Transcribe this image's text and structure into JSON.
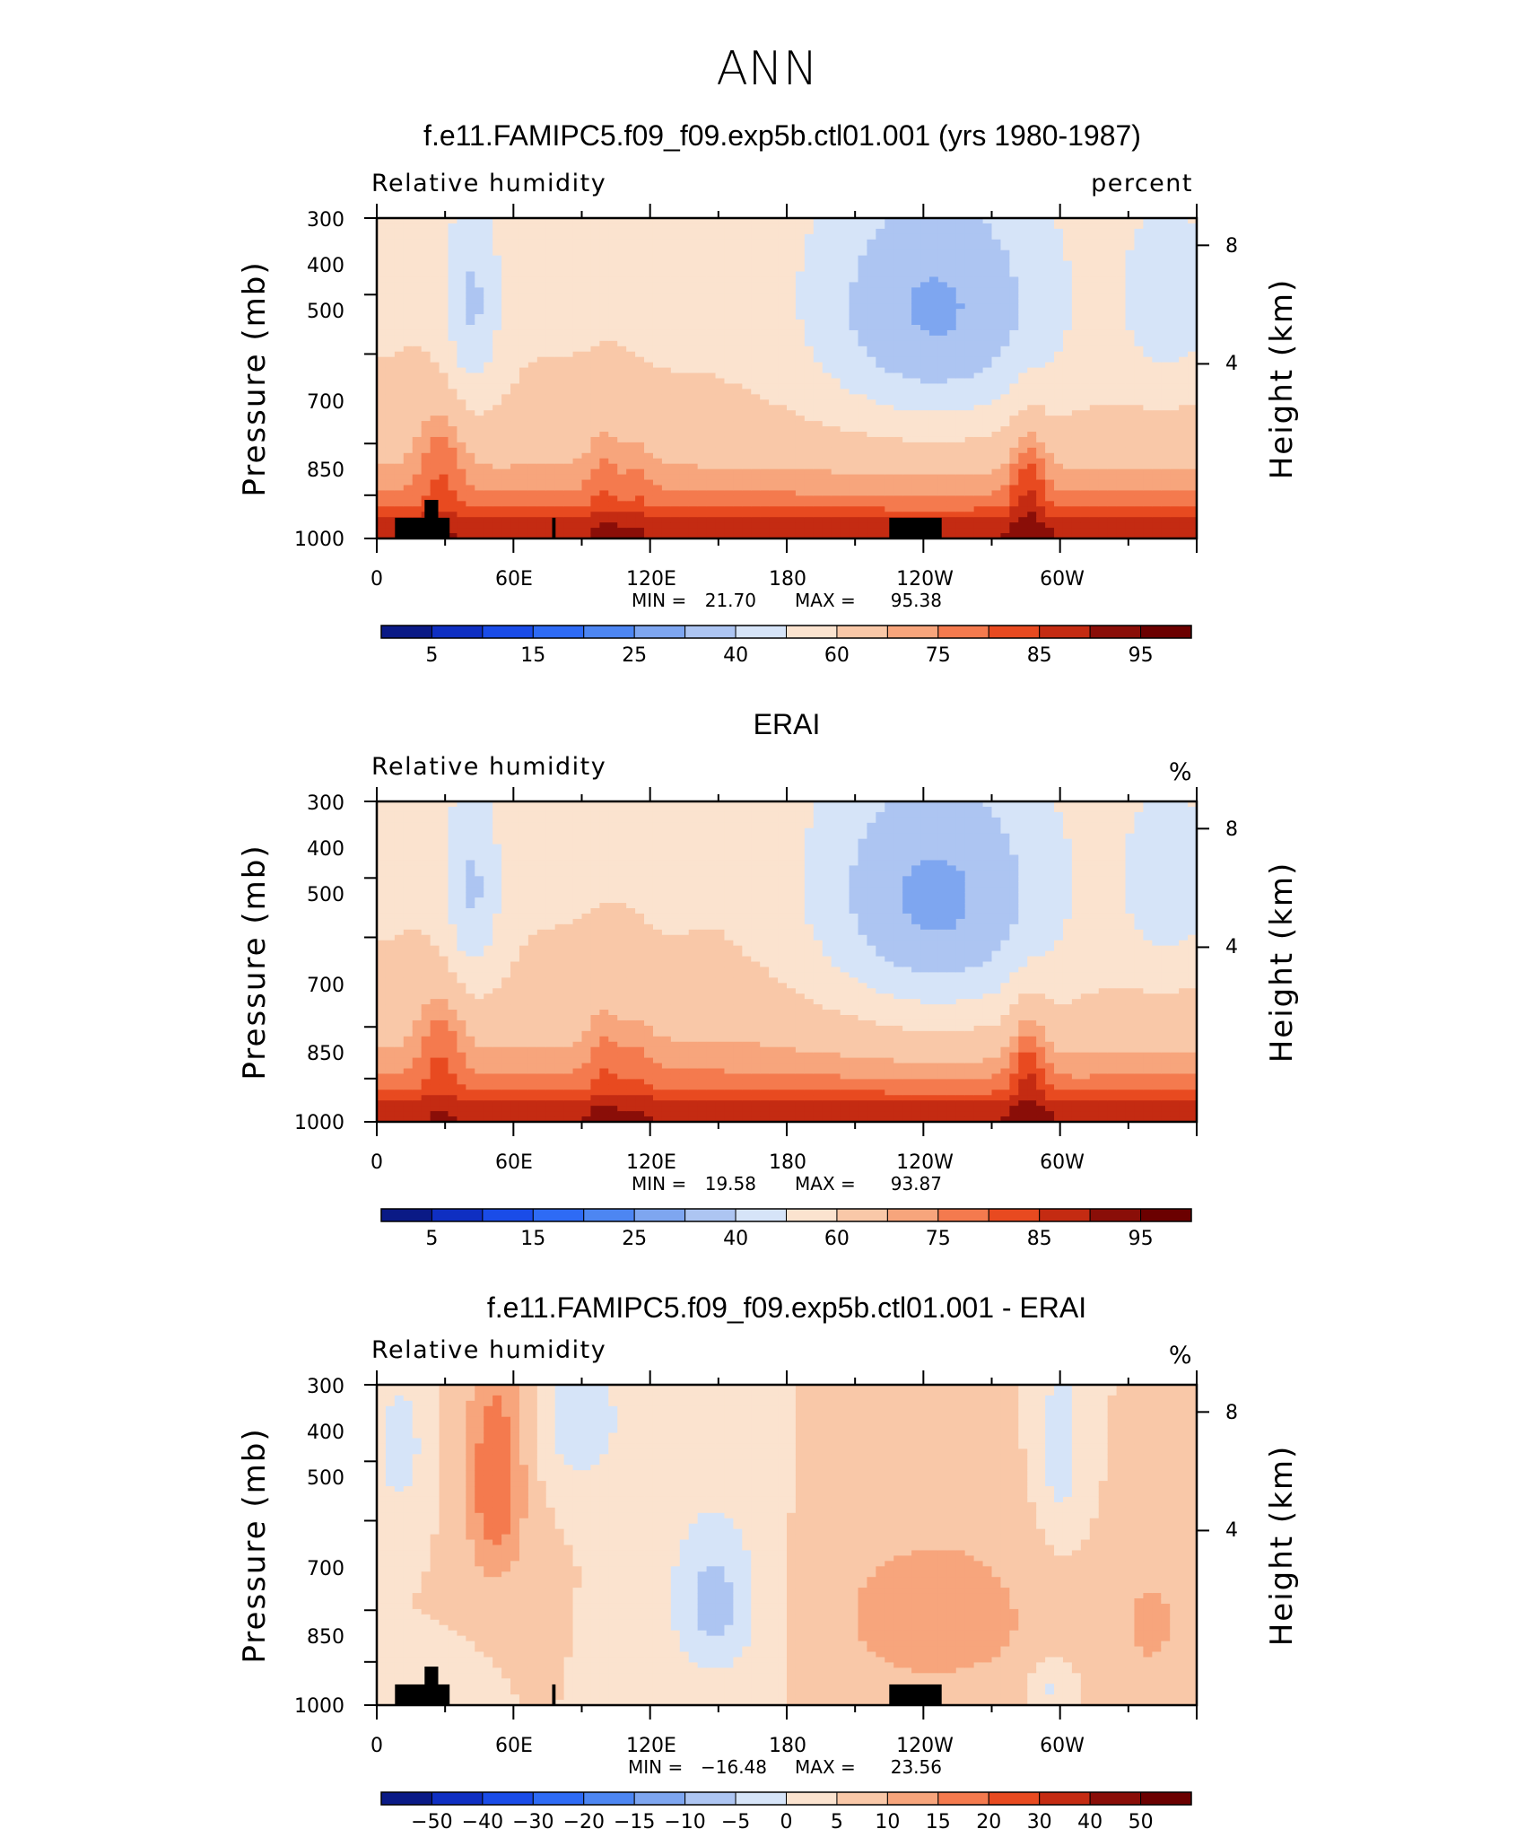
{
  "header": {
    "main_title": "ANN"
  },
  "chart_data": [
    {
      "type": "heatmap",
      "title": "f.e11.FAMIPC5.f09_f09.exp5b.ctl01.001 (yrs 1980-1987)",
      "variable_label": "Relative humidity",
      "units_label": "percent",
      "ylabel": "Pressure (mb)",
      "ylabel_right": "Height (km)",
      "x_ticks": [
        "0",
        "60E",
        "120E",
        "180",
        "120W",
        "60W"
      ],
      "y_ticks": [
        "300",
        "400",
        "500",
        "700",
        "850",
        "1000"
      ],
      "y_right_ticks": [
        "8",
        "4"
      ],
      "xlim": [
        0,
        360
      ],
      "ylim": [
        1000,
        300
      ],
      "min_label": "MIN =",
      "min_value": "21.70",
      "max_label": "MAX =",
      "max_value": "95.38",
      "levels": [
        "5",
        "15",
        "25",
        "40",
        "60",
        "75",
        "85",
        "95"
      ],
      "field": "model",
      "show_topography": true
    },
    {
      "type": "heatmap",
      "title": "ERAI",
      "variable_label": "Relative humidity",
      "units_label": "%",
      "ylabel": "Pressure (mb)",
      "ylabel_right": "Height (km)",
      "x_ticks": [
        "0",
        "60E",
        "120E",
        "180",
        "120W",
        "60W"
      ],
      "y_ticks": [
        "300",
        "400",
        "500",
        "700",
        "850",
        "1000"
      ],
      "y_right_ticks": [
        "8",
        "4"
      ],
      "xlim": [
        0,
        360
      ],
      "ylim": [
        1000,
        300
      ],
      "min_label": "MIN =",
      "min_value": "19.58",
      "max_label": "MAX =",
      "max_value": "93.87",
      "levels": [
        "5",
        "15",
        "25",
        "40",
        "60",
        "75",
        "85",
        "95"
      ],
      "field": "obs",
      "show_topography": false
    },
    {
      "type": "heatmap",
      "title": "f.e11.FAMIPC5.f09_f09.exp5b.ctl01.001 - ERAI",
      "variable_label": "Relative humidity",
      "units_label": "%",
      "ylabel": "Pressure (mb)",
      "ylabel_right": "Height (km)",
      "x_ticks": [
        "0",
        "60E",
        "120E",
        "180",
        "120W",
        "60W"
      ],
      "y_ticks": [
        "300",
        "400",
        "500",
        "700",
        "850",
        "1000"
      ],
      "y_right_ticks": [
        "8",
        "4"
      ],
      "xlim": [
        0,
        360
      ],
      "ylim": [
        1000,
        300
      ],
      "min_label": "MIN =",
      "min_value": "−16.48",
      "max_label": "MAX =",
      "max_value": "23.56",
      "levels": [
        "−50",
        "−40",
        "−30",
        "−20",
        "−15",
        "−10",
        "−5",
        "0",
        "5",
        "10",
        "15",
        "20",
        "30",
        "40",
        "50"
      ],
      "field": "diff",
      "show_topography": true
    }
  ],
  "colors": {
    "palette": [
      "#0a1a86",
      "#0f2fc2",
      "#1a4ce8",
      "#2e6bf5",
      "#4d86f2",
      "#7ea6f0",
      "#adc5f2",
      "#d6e4f8",
      "#fbe3cf",
      "#f9c8a8",
      "#f7a57c",
      "#f47a4e",
      "#e84a20",
      "#c42b12",
      "#8a0e08",
      "#6b0000"
    ],
    "topography": "#000000"
  }
}
